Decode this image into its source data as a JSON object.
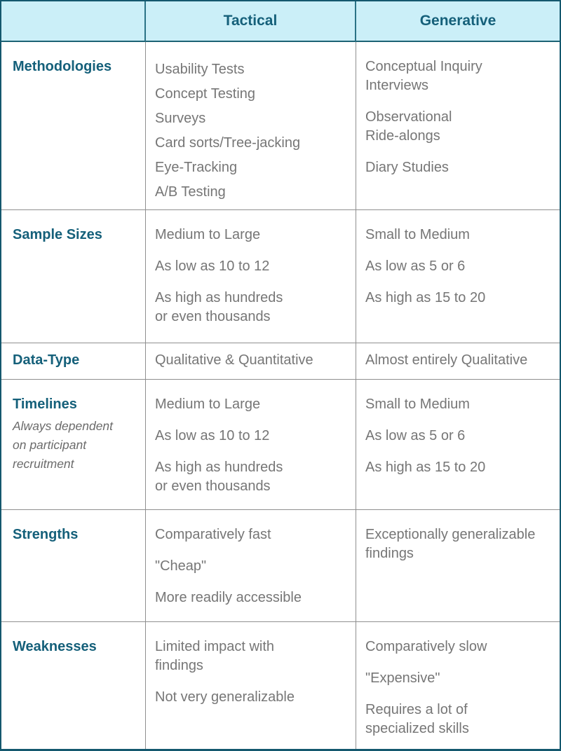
{
  "table": {
    "header": {
      "empty": "",
      "tactical": "Tactical",
      "generative": "Generative"
    },
    "rows": [
      {
        "label": "Methodologies",
        "tactical": [
          "Usability Tests\nConcept Testing\nSurveys\nCard sorts/Tree-jacking\nEye-Tracking\nA/B Testing"
        ],
        "generative": [
          "Conceptual Inquiry\nInterviews",
          "Observational\nRide-alongs",
          "Diary Studies"
        ]
      },
      {
        "label": "Sample Sizes",
        "tactical": [
          "Medium to Large",
          "As low as 10 to 12",
          "As high as hundreds\nor even thousands"
        ],
        "generative": [
          "Small to Medium",
          "As low as 5 or 6",
          "As high as 15 to 20"
        ]
      },
      {
        "label": "Data-Type",
        "tactical": [
          "Qualitative & Quantitative"
        ],
        "generative": [
          "Almost entirely Qualitative"
        ]
      },
      {
        "label": "Timelines",
        "note": "Always dependent\non participant\nrecruitment",
        "tactical": [
          "Medium to Large",
          "As low as 10 to 12",
          "As high as hundreds\nor even thousands"
        ],
        "generative": [
          "Small to Medium",
          "As low as 5 or 6",
          "As high as 15 to 20"
        ]
      },
      {
        "label": "Strengths",
        "tactical": [
          "Comparatively fast",
          "\"Cheap\"",
          "More readily accessible"
        ],
        "generative": [
          "Exceptionally generalizable\nfindings"
        ]
      },
      {
        "label": "Weaknesses",
        "tactical": [
          "Limited impact with\nfindings",
          "Not very generalizable"
        ],
        "generative": [
          "Comparatively slow",
          "\"Expensive\"",
          "Requires a lot of\nspecialized skills"
        ]
      }
    ],
    "colors": {
      "accent_teal_text": "#15607a",
      "header_background": "#cbeff8",
      "outer_border": "#14586e",
      "grid_line": "#8f8f8f",
      "body_text": "#767676"
    }
  }
}
